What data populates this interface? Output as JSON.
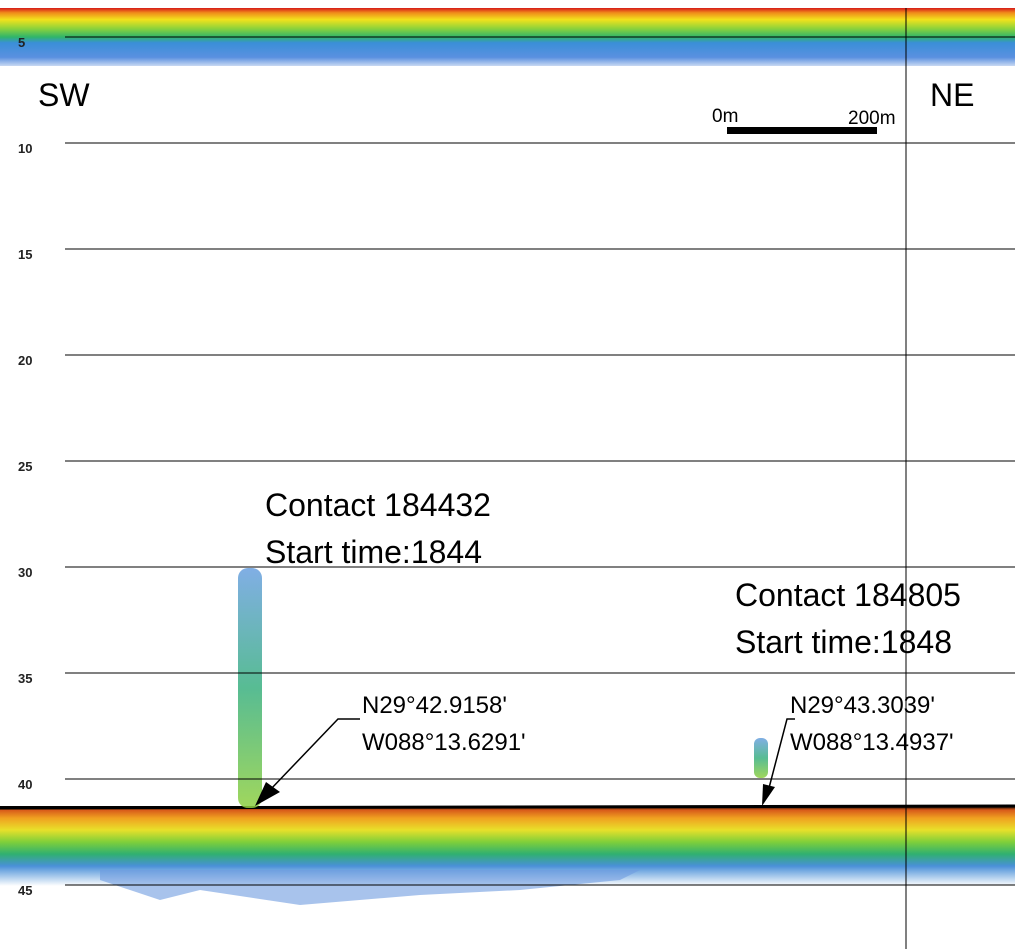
{
  "depth_labels": [
    "5",
    "10",
    "15",
    "20",
    "25",
    "30",
    "35",
    "40",
    "45"
  ],
  "directions": {
    "left": "SW",
    "right": "NE"
  },
  "scale_bar": {
    "start": "0m",
    "end": "200m"
  },
  "contacts": [
    {
      "title": "Contact 184432",
      "start_time": "Start time:1844",
      "latitude": "N29°42.9158'",
      "longitude": "W088°13.6291'"
    },
    {
      "title": "Contact 184805",
      "start_time": "Start time:1848",
      "latitude": "N29°43.3039'",
      "longitude": "W088°13.4937'"
    }
  ]
}
